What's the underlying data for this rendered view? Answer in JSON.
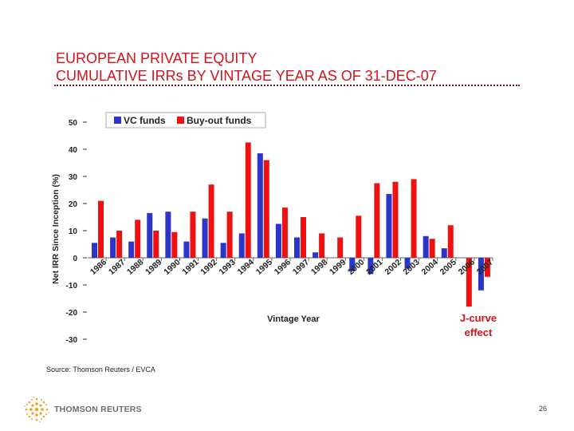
{
  "slide": {
    "title_line1": "EUROPEAN PRIVATE EQUITY",
    "title_line2": "CUMULATIVE IRRs BY VINTAGE YEAR AS OF 31-DEC-07",
    "source": "Source: Thomson Reuters / EVCA",
    "logo_text": "THOMSON REUTERS",
    "page_number": "26"
  },
  "colors": {
    "title": "#d4141b",
    "vc": "#2b35c8",
    "buyout": "#ee1111",
    "annotation": "#d4141b"
  },
  "chart_data": {
    "type": "bar",
    "ylabel": "Net IRR Since Inception (%)",
    "xlabel": "Vintage Year",
    "ylim": [
      -30,
      50
    ],
    "yticks": [
      50,
      40,
      30,
      20,
      10,
      0,
      -10,
      -20,
      -30
    ],
    "categories": [
      "1986",
      "1987",
      "1988",
      "1989",
      "1990",
      "1991",
      "1992",
      "1993",
      "1994",
      "1995",
      "1996",
      "1997",
      "1998",
      "1999",
      "2000",
      "2001",
      "2002",
      "2003",
      "2004",
      "2005",
      "2006",
      "2007"
    ],
    "series": [
      {
        "name": "VC funds",
        "color": "#2b35c8",
        "values": [
          5.5,
          7.5,
          6,
          16.5,
          17,
          6,
          14.5,
          5.5,
          9,
          38.5,
          12.5,
          7.5,
          2,
          0,
          -5,
          -6,
          23.5,
          -4,
          8,
          3.5,
          0,
          -12
        ]
      },
      {
        "name": "Buy-out funds",
        "color": "#ee1111",
        "values": [
          21,
          10,
          14,
          10,
          9.5,
          17,
          27,
          17,
          42.5,
          36,
          18.5,
          15,
          9,
          7.5,
          15.5,
          27.5,
          28,
          29,
          7,
          12,
          -18,
          -7
        ]
      }
    ],
    "legend": "top",
    "annotation": "J-curve effect"
  }
}
